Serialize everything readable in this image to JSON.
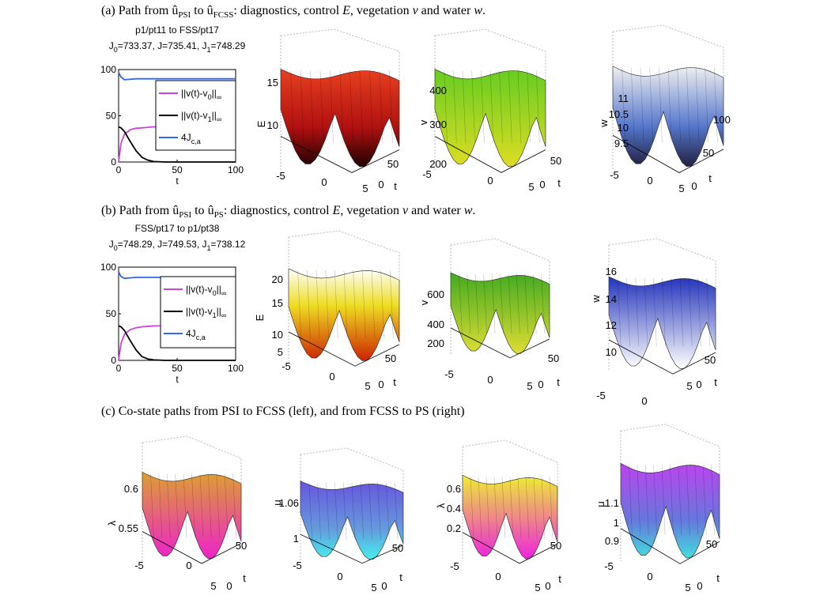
{
  "captions": {
    "a": [
      "(a) Path from ",
      "û",
      "PSI",
      " to ",
      "û",
      "FCSS",
      ": diagnostics, control ",
      "E",
      ", vegetation ",
      "v",
      " and water ",
      "w",
      "."
    ],
    "b": [
      "(b) Path from ",
      "û",
      "PSI",
      " to ",
      "û",
      "PS",
      ": diagnostics, control ",
      "E",
      ", vegetation ",
      "v",
      " and water ",
      "w",
      "."
    ],
    "c": "(c) Co-state paths from PSI to FCSS (left), and from FCSS to PS (right)"
  },
  "chart_data": [
    {
      "type": "line",
      "title": "p1/pt11 to FSS/pt17",
      "subtitle": [
        "J",
        "0",
        "=733.37,  J=735.41,  J",
        "1",
        "=748.29"
      ],
      "x": [
        0,
        2,
        5,
        10,
        15,
        20,
        25,
        30,
        40,
        60,
        80,
        100
      ],
      "xlim": [
        0,
        100
      ],
      "xticks": [
        0,
        50,
        100
      ],
      "xlabel": "t",
      "ylim": [
        0,
        100
      ],
      "yticks": [
        0,
        50,
        100
      ],
      "series": [
        {
          "name": [
            "||v(t)-v",
            "0",
            "||",
            "∞"
          ],
          "color": "#cc44dd",
          "values": [
            0,
            20,
            30,
            35,
            36.5,
            37,
            37.5,
            38,
            38,
            38,
            38,
            38
          ]
        },
        {
          "name": [
            "||v(t)-v",
            "1",
            "||",
            "∞"
          ],
          "color": "#000000",
          "values": [
            38,
            37,
            33,
            22,
            12,
            5,
            2,
            0.5,
            0,
            0,
            0,
            0
          ]
        },
        {
          "name": [
            "4J",
            "c,a"
          ],
          "color": "#3366ee",
          "values": [
            97,
            92,
            89,
            89.5,
            90,
            90,
            90,
            90,
            90,
            90,
            90,
            90
          ]
        }
      ]
    },
    {
      "type": "line",
      "title": "FSS/pt17 to p1/pt38",
      "subtitle": [
        "J",
        "0",
        "=748.29,  J=749.53,  J",
        "1",
        "=738.12"
      ],
      "x": [
        0,
        2,
        5,
        10,
        15,
        20,
        25,
        30,
        40,
        60,
        80,
        100
      ],
      "xlim": [
        0,
        100
      ],
      "xticks": [
        0,
        50,
        100
      ],
      "xlabel": "t",
      "ylim": [
        0,
        100
      ],
      "yticks": [
        0,
        50,
        100
      ],
      "series": [
        {
          "name": [
            "||v(t)-v",
            "0",
            "||",
            "∞"
          ],
          "color": "#cc44dd",
          "values": [
            0,
            18,
            28,
            33,
            35,
            36,
            36.5,
            37,
            37,
            37,
            37,
            37
          ]
        },
        {
          "name": [
            "||v(t)-v",
            "1",
            "||",
            "∞"
          ],
          "color": "#000000",
          "values": [
            37,
            36,
            32,
            21,
            11,
            4,
            1.5,
            0.5,
            0,
            0,
            0,
            0
          ]
        },
        {
          "name": [
            "4J",
            "c,a"
          ],
          "color": "#3366ee",
          "values": [
            95,
            90,
            88,
            88.5,
            89,
            89,
            89,
            89,
            89,
            89,
            89,
            89
          ]
        }
      ]
    }
  ],
  "surfaces": [
    {
      "zlabel": "E",
      "zticks": [
        15,
        10
      ],
      "xticks": [
        -5,
        0,
        5
      ],
      "tticks": [
        0,
        50
      ],
      "tlabel": "t"
    },
    {
      "zlabel": "v",
      "zticks": [
        400,
        300,
        200
      ],
      "xticks": [
        -5,
        0,
        5
      ],
      "tticks": [
        0,
        50
      ],
      "tlabel": "t"
    },
    {
      "zlabel": "w",
      "zticks": [
        11,
        10.5,
        10,
        9.5
      ],
      "xticks": [
        -5,
        0,
        5
      ],
      "tticks": [
        0,
        50,
        100
      ],
      "tlabel": "t"
    },
    {
      "zlabel": "E",
      "zticks": [
        20,
        15,
        10,
        5
      ],
      "xticks": [
        -5,
        0,
        5
      ],
      "tticks": [
        0,
        50
      ],
      "tlabel": "t"
    },
    {
      "zlabel": "v",
      "zticks": [
        600,
        400,
        200
      ],
      "xticks": [
        -5,
        0,
        5
      ],
      "tticks": [
        0,
        50
      ],
      "tlabel": "t"
    },
    {
      "zlabel": "w",
      "zticks": [
        16,
        14,
        12,
        10
      ],
      "xticks": [
        -5,
        0,
        5
      ],
      "tticks": [
        0,
        50
      ],
      "tlabel": "t"
    },
    {
      "zlabel": "λ",
      "zticks": [
        0.6,
        0.55
      ],
      "xticks": [
        -5,
        0,
        5
      ],
      "tticks": [
        0,
        50
      ],
      "tlabel": "t"
    },
    {
      "zlabel": "μ",
      "zticks": [
        1.06,
        1
      ],
      "xticks": [
        -5,
        0,
        5
      ],
      "tticks": [
        0,
        50
      ],
      "tlabel": "t"
    },
    {
      "zlabel": "λ",
      "zticks": [
        0.6,
        0.4,
        0.2
      ],
      "xticks": [
        -5,
        0,
        5
      ],
      "tticks": [
        0,
        50
      ],
      "tlabel": "t"
    },
    {
      "zlabel": "μ",
      "zticks": [
        1.1,
        1,
        0.9
      ],
      "xticks": [
        -5,
        0,
        5
      ],
      "tticks": [
        0,
        50
      ],
      "tlabel": "t"
    }
  ]
}
